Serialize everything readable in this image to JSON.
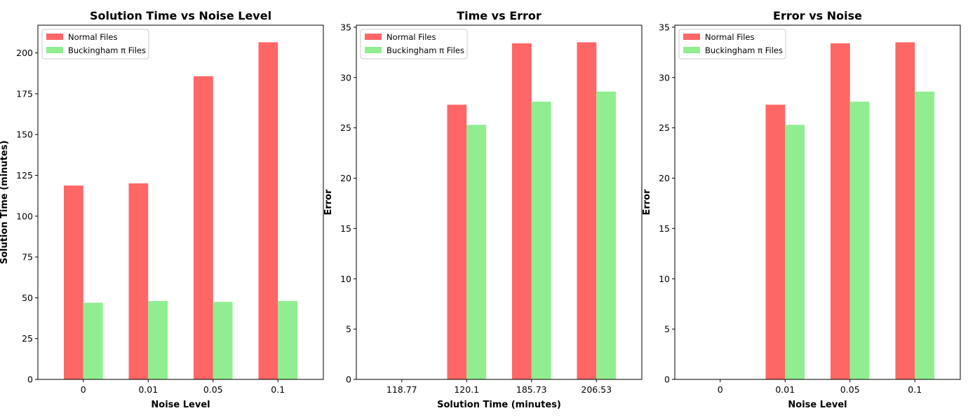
{
  "chart_data": [
    {
      "type": "bar",
      "title": "Solution Time vs Noise Level",
      "xlabel": "Noise Level",
      "ylabel": "Solution Time (minutes)",
      "categories": [
        "0",
        "0.01",
        "0.05",
        "0.1"
      ],
      "series": [
        {
          "name": "Normal Files",
          "color": "#ff6666",
          "values": [
            118.77,
            120.1,
            185.73,
            206.53
          ]
        },
        {
          "name": "Buckingham π Files",
          "color": "#90ee90",
          "values": [
            47.0,
            48.0,
            47.5,
            48.0
          ]
        }
      ],
      "ylim": [
        0,
        217
      ],
      "yticks": [
        0,
        25,
        50,
        75,
        100,
        125,
        150,
        175,
        200
      ],
      "legend": "top-left",
      "grid": false
    },
    {
      "type": "bar",
      "title": "Time vs Error",
      "xlabel": "Solution Time (minutes)",
      "ylabel": "Error",
      "categories": [
        "118.77",
        "120.1",
        "185.73",
        "206.53"
      ],
      "series": [
        {
          "name": "Normal Files",
          "color": "#ff6666",
          "values": [
            0,
            27.3,
            33.4,
            33.5
          ]
        },
        {
          "name": "Buckingham π Files",
          "color": "#90ee90",
          "values": [
            0,
            25.3,
            27.6,
            28.6
          ]
        }
      ],
      "ylim": [
        0,
        35.2
      ],
      "yticks": [
        0,
        5,
        10,
        15,
        20,
        25,
        30,
        35
      ],
      "legend": "top-left",
      "grid": false
    },
    {
      "type": "bar",
      "title": "Error vs Noise",
      "xlabel": "Noise Level",
      "ylabel": "Error",
      "categories": [
        "0",
        "0.01",
        "0.05",
        "0.1"
      ],
      "series": [
        {
          "name": "Normal Files",
          "color": "#ff6666",
          "values": [
            0,
            27.3,
            33.4,
            33.5
          ]
        },
        {
          "name": "Buckingham π Files",
          "color": "#90ee90",
          "values": [
            0,
            25.3,
            27.6,
            28.6
          ]
        }
      ],
      "ylim": [
        0,
        35.2
      ],
      "yticks": [
        0,
        5,
        10,
        15,
        20,
        25,
        30,
        35
      ],
      "legend": "top-left",
      "grid": false
    }
  ]
}
